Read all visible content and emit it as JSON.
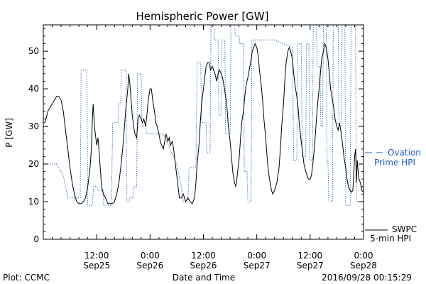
{
  "chart_data": {
    "type": "line",
    "title": "Hemispheric Power [GW]",
    "xlabel": "Date and Time",
    "ylabel": "P [GW]",
    "ylim": [
      0,
      57
    ],
    "xlim_hours": [
      0,
      72
    ],
    "yticks": [
      0,
      10,
      20,
      30,
      40,
      50
    ],
    "xticks": [
      {
        "time": "12:00",
        "date": "Sep25",
        "hour": 12
      },
      {
        "time": "0:00",
        "date": "Sep26",
        "hour": 24
      },
      {
        "time": "12:00",
        "date": "Sep26",
        "hour": 36
      },
      {
        "time": "0:00",
        "date": "Sep27",
        "hour": 48
      },
      {
        "time": "12:00",
        "date": "Sep27",
        "hour": 60
      },
      {
        "time": "0:00",
        "date": "Sep28",
        "hour": 72
      }
    ],
    "series": [
      {
        "name": "Ovation Prime HPI",
        "legend_line1": "Ovation",
        "legend_line2": "Prime HPI",
        "color": "#1f5fbf",
        "style": "dotted",
        "points": [
          [
            0,
            20
          ],
          [
            3,
            20
          ],
          [
            4.5,
            17
          ],
          [
            5.5,
            11
          ],
          [
            8.3,
            11
          ],
          [
            8.5,
            45
          ],
          [
            9.8,
            45
          ],
          [
            10,
            9
          ],
          [
            11,
            9
          ],
          [
            11.3,
            14
          ],
          [
            12,
            14
          ],
          [
            12.3,
            13
          ],
          [
            13.4,
            13
          ],
          [
            13.6,
            9
          ],
          [
            15.3,
            9
          ],
          [
            15.6,
            31
          ],
          [
            16.8,
            31
          ],
          [
            17,
            36
          ],
          [
            17.4,
            36
          ],
          [
            17.6,
            45
          ],
          [
            18.6,
            45
          ],
          [
            18.8,
            10
          ],
          [
            19.3,
            10
          ],
          [
            19.5,
            11
          ],
          [
            20.1,
            11
          ],
          [
            20.4,
            14
          ],
          [
            21,
            14
          ],
          [
            21.2,
            44
          ],
          [
            22,
            44
          ],
          [
            22.2,
            30
          ],
          [
            23,
            30
          ],
          [
            23.2,
            28
          ],
          [
            27,
            28
          ],
          [
            30,
            20
          ],
          [
            31,
            14
          ],
          [
            31.4,
            10
          ],
          [
            32.5,
            10
          ],
          [
            32.8,
            19
          ],
          [
            34.3,
            19
          ],
          [
            34.6,
            47
          ],
          [
            35.4,
            47
          ],
          [
            35.6,
            31
          ],
          [
            36.6,
            31
          ],
          [
            36.8,
            23
          ],
          [
            37.5,
            23
          ],
          [
            37.7,
            57
          ],
          [
            38.3,
            57
          ],
          [
            38.5,
            53
          ],
          [
            39.3,
            53
          ],
          [
            39.5,
            33
          ],
          [
            40,
            33
          ],
          [
            40.2,
            53
          ],
          [
            40.8,
            53
          ],
          [
            41,
            28
          ],
          [
            42,
            28
          ],
          [
            42.2,
            57
          ],
          [
            43,
            57
          ],
          [
            43.2,
            54
          ],
          [
            44,
            54
          ],
          [
            44.2,
            52
          ],
          [
            45,
            52
          ],
          [
            45.2,
            18
          ],
          [
            45.8,
            18
          ],
          [
            46,
            10
          ],
          [
            46.7,
            10
          ],
          [
            46.9,
            53
          ],
          [
            52,
            53
          ],
          [
            56,
            51
          ],
          [
            56.3,
            21
          ],
          [
            57,
            21
          ],
          [
            57.2,
            52
          ],
          [
            58,
            52
          ],
          [
            58.2,
            22
          ],
          [
            59,
            22
          ],
          [
            59.2,
            52
          ],
          [
            59.7,
            52
          ],
          [
            59.9,
            21
          ],
          [
            60.5,
            21
          ],
          [
            60.7,
            57
          ],
          [
            61.4,
            57
          ],
          [
            61.6,
            46
          ],
          [
            62.2,
            46
          ],
          [
            62.4,
            30
          ],
          [
            62.8,
            30
          ],
          [
            63,
            57
          ],
          [
            63.6,
            57
          ],
          [
            63.8,
            21
          ],
          [
            64,
            21
          ],
          [
            64.2,
            10
          ],
          [
            65,
            10
          ],
          [
            65.2,
            57
          ],
          [
            66.3,
            57
          ],
          [
            66.5,
            30
          ],
          [
            67,
            30
          ],
          [
            67.2,
            57
          ],
          [
            67.8,
            57
          ],
          [
            68,
            9
          ],
          [
            69,
            9
          ],
          [
            69.2,
            57
          ],
          [
            70.2,
            57
          ],
          [
            70.4,
            10
          ],
          [
            72,
            10
          ]
        ]
      },
      {
        "name": "SWPC 5-min HPI",
        "legend_line1": "SWPC",
        "legend_line2": "5-min HPI",
        "color": "#000000",
        "style": "solid",
        "points": [
          [
            0,
            31
          ],
          [
            0.3,
            31
          ],
          [
            0.6,
            32
          ],
          [
            1,
            34
          ],
          [
            1.5,
            35
          ],
          [
            2,
            36
          ],
          [
            2.5,
            37
          ],
          [
            3,
            38
          ],
          [
            3.5,
            38
          ],
          [
            4,
            37
          ],
          [
            4.5,
            34
          ],
          [
            5,
            29
          ],
          [
            5.5,
            24
          ],
          [
            6,
            19
          ],
          [
            6.5,
            15
          ],
          [
            7,
            12
          ],
          [
            7.5,
            10
          ],
          [
            8,
            9.5
          ],
          [
            8.5,
            9.5
          ],
          [
            9,
            10
          ],
          [
            9.5,
            11
          ],
          [
            10,
            14
          ],
          [
            10.5,
            19
          ],
          [
            10.8,
            24
          ],
          [
            11,
            31
          ],
          [
            11.2,
            36
          ],
          [
            11.5,
            30
          ],
          [
            12,
            25
          ],
          [
            12.3,
            27
          ],
          [
            12.5,
            24
          ],
          [
            12.8,
            19
          ],
          [
            13.1,
            14
          ],
          [
            13.5,
            12
          ],
          [
            14,
            11
          ],
          [
            14.5,
            9.5
          ],
          [
            15,
            9.5
          ],
          [
            15.5,
            9.5
          ],
          [
            16,
            10
          ],
          [
            16.5,
            12
          ],
          [
            17,
            15
          ],
          [
            17.5,
            20
          ],
          [
            18,
            26
          ],
          [
            18.5,
            34
          ],
          [
            19,
            40
          ],
          [
            19.2,
            44
          ],
          [
            19.5,
            41
          ],
          [
            19.8,
            36
          ],
          [
            20,
            33
          ],
          [
            20.3,
            30
          ],
          [
            20.6,
            28
          ],
          [
            21,
            27
          ],
          [
            21.3,
            32
          ],
          [
            21.6,
            33
          ],
          [
            22,
            32
          ],
          [
            22.3,
            31
          ],
          [
            22.6,
            32
          ],
          [
            23,
            30
          ],
          [
            23.3,
            33
          ],
          [
            23.6,
            37
          ],
          [
            24,
            40
          ],
          [
            24.3,
            40
          ],
          [
            24.6,
            37
          ],
          [
            25,
            34
          ],
          [
            25.3,
            31
          ],
          [
            25.6,
            30
          ],
          [
            26,
            28
          ],
          [
            26.3,
            26
          ],
          [
            26.6,
            25
          ],
          [
            27,
            24
          ],
          [
            27.3,
            26
          ],
          [
            27.6,
            28
          ],
          [
            28,
            26
          ],
          [
            28.3,
            27
          ],
          [
            28.6,
            25
          ],
          [
            29,
            26
          ],
          [
            29.3,
            24
          ],
          [
            29.6,
            21
          ],
          [
            30,
            17
          ],
          [
            30.3,
            14
          ],
          [
            30.6,
            11
          ],
          [
            31,
            11
          ],
          [
            31.5,
            12
          ],
          [
            32,
            10
          ],
          [
            32.5,
            11
          ],
          [
            33,
            10
          ],
          [
            33.5,
            9.5
          ],
          [
            34,
            11
          ],
          [
            34.3,
            15
          ],
          [
            34.6,
            20
          ],
          [
            35,
            25
          ],
          [
            35.3,
            31
          ],
          [
            35.6,
            36
          ],
          [
            36,
            40
          ],
          [
            36.3,
            43
          ],
          [
            36.6,
            46
          ],
          [
            37,
            47
          ],
          [
            37.3,
            47
          ],
          [
            37.6,
            45
          ],
          [
            38,
            46
          ],
          [
            38.3,
            45
          ],
          [
            38.6,
            44
          ],
          [
            39,
            42
          ],
          [
            39.3,
            44
          ],
          [
            39.6,
            45
          ],
          [
            40,
            44
          ],
          [
            40.3,
            43
          ],
          [
            40.6,
            41
          ],
          [
            41,
            38
          ],
          [
            41.3,
            35
          ],
          [
            41.6,
            30
          ],
          [
            42,
            26
          ],
          [
            42.3,
            22
          ],
          [
            42.6,
            18
          ],
          [
            43,
            15
          ],
          [
            43.3,
            14
          ],
          [
            43.6,
            17
          ],
          [
            44,
            21
          ],
          [
            44.3,
            26
          ],
          [
            44.6,
            31
          ],
          [
            45,
            34
          ],
          [
            45.3,
            38
          ],
          [
            45.6,
            41
          ],
          [
            46,
            43
          ],
          [
            46.3,
            45
          ],
          [
            46.6,
            47
          ],
          [
            47,
            50
          ],
          [
            47.3,
            51
          ],
          [
            47.6,
            52
          ],
          [
            48,
            51
          ],
          [
            48.3,
            49
          ],
          [
            48.6,
            45
          ],
          [
            49,
            41
          ],
          [
            49.3,
            37
          ],
          [
            49.6,
            32
          ],
          [
            50,
            27
          ],
          [
            50.3,
            22
          ],
          [
            50.6,
            18
          ],
          [
            51,
            15
          ],
          [
            51.3,
            13
          ],
          [
            51.6,
            12
          ],
          [
            52,
            13
          ],
          [
            52.5,
            15
          ],
          [
            53,
            19
          ],
          [
            53.3,
            24
          ],
          [
            53.6,
            30
          ],
          [
            54,
            36
          ],
          [
            54.3,
            42
          ],
          [
            54.6,
            47
          ],
          [
            55,
            50
          ],
          [
            55.3,
            51
          ],
          [
            55.6,
            50
          ],
          [
            56,
            48
          ],
          [
            56.3,
            44
          ],
          [
            56.6,
            41
          ],
          [
            57,
            38
          ],
          [
            57.3,
            35
          ],
          [
            57.6,
            30
          ],
          [
            58,
            26
          ],
          [
            58.3,
            23
          ],
          [
            58.6,
            20
          ],
          [
            59,
            18
          ],
          [
            59.3,
            17
          ],
          [
            59.6,
            16
          ],
          [
            60,
            16
          ],
          [
            60.3,
            17
          ],
          [
            60.6,
            20
          ],
          [
            61,
            25
          ],
          [
            61.3,
            30
          ],
          [
            61.6,
            35
          ],
          [
            62,
            40
          ],
          [
            62.3,
            44
          ],
          [
            62.6,
            48
          ],
          [
            63,
            50
          ],
          [
            63.3,
            52
          ],
          [
            63.6,
            51
          ],
          [
            64,
            48
          ],
          [
            64.3,
            44
          ],
          [
            64.6,
            40
          ],
          [
            65,
            37
          ],
          [
            65.3,
            35
          ],
          [
            65.6,
            32
          ],
          [
            66,
            30
          ],
          [
            66.3,
            29
          ],
          [
            66.6,
            31
          ],
          [
            67,
            28
          ],
          [
            67.3,
            25
          ],
          [
            67.6,
            22
          ],
          [
            68,
            19
          ],
          [
            68.3,
            16
          ],
          [
            68.6,
            14
          ],
          [
            69,
            13
          ],
          [
            69.3,
            12.5
          ],
          [
            69.6,
            13
          ],
          [
            70,
            22
          ],
          [
            70.2,
            24
          ],
          [
            70.4,
            15
          ],
          [
            70.6,
            21
          ],
          [
            70.8,
            18
          ],
          [
            71,
            16
          ],
          [
            71.3,
            15
          ],
          [
            71.6,
            13
          ],
          [
            72,
            12.5
          ]
        ]
      }
    ]
  },
  "footer": {
    "plot_credit": "Plot: CCMC",
    "timestamp": "2016/09/28 00:15:29"
  }
}
